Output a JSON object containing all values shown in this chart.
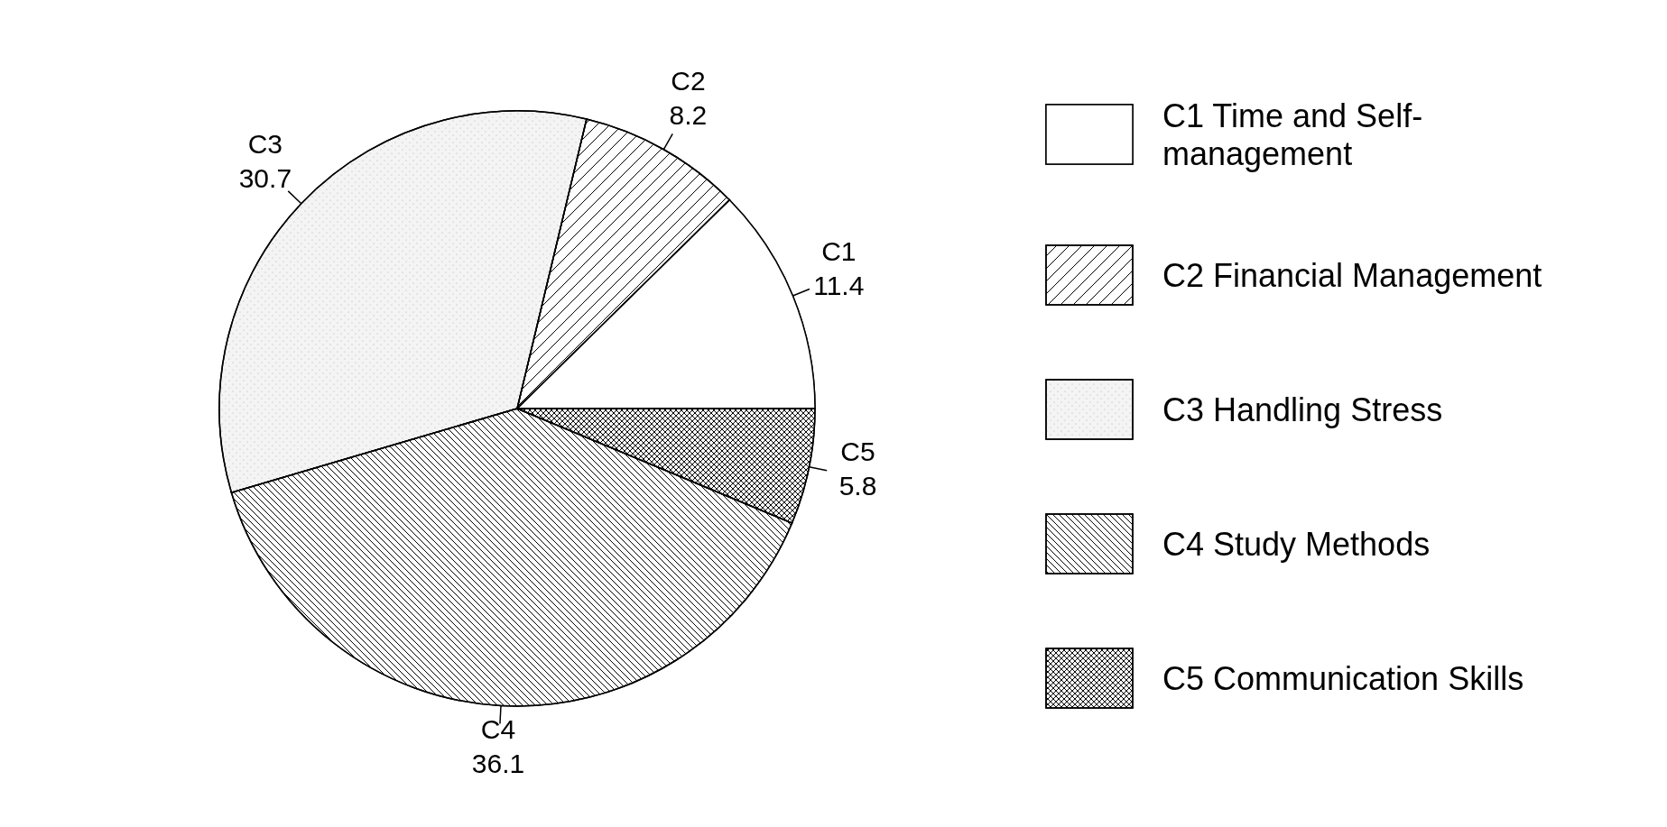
{
  "chart_data": {
    "type": "pie",
    "categories": [
      "C1 Time and Self-management",
      "C2 Financial Management",
      "C3 Handling Stress",
      "C4 Study Methods",
      "C5 Communication Skills"
    ],
    "values": [
      11.4,
      8.2,
      30.7,
      36.1,
      5.8
    ],
    "colors": [
      "#ffffff",
      "#ffffff",
      "#f4f4f4",
      "#ffffff",
      "#ffffff"
    ],
    "value_labels": [
      "C1\n11.4",
      "C2\n8.2",
      "C3\n30.7",
      "C4\n36.1",
      "C5\n5.8"
    ],
    "legend": "right"
  }
}
